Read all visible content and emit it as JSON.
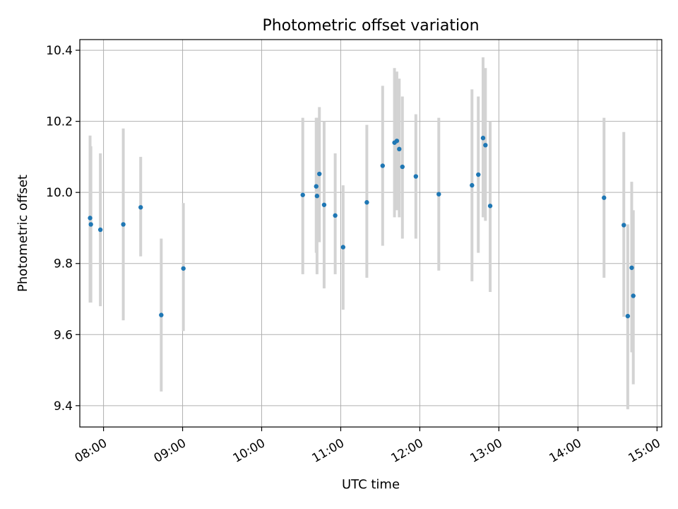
{
  "chart_data": {
    "type": "scatter",
    "title": "Photometric offset variation",
    "xlabel": "UTC time",
    "ylabel": "Photometric offset",
    "xlim": [
      7.7,
      15.06
    ],
    "ylim": [
      9.34,
      10.43
    ],
    "x_ticks": [
      {
        "value": 8,
        "label": "08:00"
      },
      {
        "value": 9,
        "label": "09:00"
      },
      {
        "value": 10,
        "label": "10:00"
      },
      {
        "value": 11,
        "label": "11:00"
      },
      {
        "value": 12,
        "label": "12:00"
      },
      {
        "value": 13,
        "label": "13:00"
      },
      {
        "value": 14,
        "label": "14:00"
      },
      {
        "value": 15,
        "label": "15:00"
      }
    ],
    "y_ticks": [
      {
        "value": 9.4,
        "label": "9.4"
      },
      {
        "value": 9.6,
        "label": "9.6"
      },
      {
        "value": 9.8,
        "label": "9.8"
      },
      {
        "value": 10.0,
        "label": "10.0"
      },
      {
        "value": 10.2,
        "label": "10.2"
      },
      {
        "value": 10.4,
        "label": "10.4"
      }
    ],
    "grid": true,
    "legend": false,
    "point_color": "#1f77b4",
    "errorbar_color": "#d3d3d3",
    "points": [
      {
        "x": 7.83,
        "y": 9.928,
        "lo": 9.69,
        "hi": 10.16
      },
      {
        "x": 7.84,
        "y": 9.91,
        "lo": 9.69,
        "hi": 10.13
      },
      {
        "x": 7.96,
        "y": 9.895,
        "lo": 9.68,
        "hi": 10.11
      },
      {
        "x": 8.25,
        "y": 9.91,
        "lo": 9.64,
        "hi": 10.18
      },
      {
        "x": 8.47,
        "y": 9.958,
        "lo": 9.82,
        "hi": 10.1
      },
      {
        "x": 8.73,
        "y": 9.655,
        "lo": 9.44,
        "hi": 9.87
      },
      {
        "x": 9.01,
        "y": 9.786,
        "lo": 9.61,
        "hi": 9.97
      },
      {
        "x": 10.52,
        "y": 9.993,
        "lo": 9.77,
        "hi": 10.21
      },
      {
        "x": 10.69,
        "y": 10.017,
        "lo": 9.83,
        "hi": 10.21
      },
      {
        "x": 10.7,
        "y": 9.99,
        "lo": 9.77,
        "hi": 10.21
      },
      {
        "x": 10.73,
        "y": 10.052,
        "lo": 9.86,
        "hi": 10.24
      },
      {
        "x": 10.79,
        "y": 9.965,
        "lo": 9.73,
        "hi": 10.2
      },
      {
        "x": 10.93,
        "y": 9.935,
        "lo": 9.77,
        "hi": 10.11
      },
      {
        "x": 11.03,
        "y": 9.846,
        "lo": 9.67,
        "hi": 10.02
      },
      {
        "x": 11.33,
        "y": 9.972,
        "lo": 9.76,
        "hi": 10.19
      },
      {
        "x": 11.53,
        "y": 10.075,
        "lo": 9.85,
        "hi": 10.3
      },
      {
        "x": 11.68,
        "y": 10.14,
        "lo": 9.93,
        "hi": 10.35
      },
      {
        "x": 11.71,
        "y": 10.145,
        "lo": 9.95,
        "hi": 10.34
      },
      {
        "x": 11.74,
        "y": 10.122,
        "lo": 9.93,
        "hi": 10.32
      },
      {
        "x": 11.78,
        "y": 10.072,
        "lo": 9.87,
        "hi": 10.27
      },
      {
        "x": 11.95,
        "y": 10.045,
        "lo": 9.87,
        "hi": 10.22
      },
      {
        "x": 12.24,
        "y": 9.995,
        "lo": 9.78,
        "hi": 10.21
      },
      {
        "x": 12.66,
        "y": 10.02,
        "lo": 9.75,
        "hi": 10.29
      },
      {
        "x": 12.74,
        "y": 10.05,
        "lo": 9.83,
        "hi": 10.27
      },
      {
        "x": 12.8,
        "y": 10.153,
        "lo": 9.93,
        "hi": 10.38
      },
      {
        "x": 12.83,
        "y": 10.133,
        "lo": 9.92,
        "hi": 10.35
      },
      {
        "x": 12.89,
        "y": 9.962,
        "lo": 9.72,
        "hi": 10.2
      },
      {
        "x": 14.33,
        "y": 9.985,
        "lo": 9.76,
        "hi": 10.21
      },
      {
        "x": 14.58,
        "y": 9.908,
        "lo": 9.65,
        "hi": 10.17
      },
      {
        "x": 14.63,
        "y": 9.652,
        "lo": 9.39,
        "hi": 9.91
      },
      {
        "x": 14.68,
        "y": 9.788,
        "lo": 9.55,
        "hi": 10.03
      },
      {
        "x": 14.7,
        "y": 9.709,
        "lo": 9.46,
        "hi": 9.95
      }
    ]
  }
}
